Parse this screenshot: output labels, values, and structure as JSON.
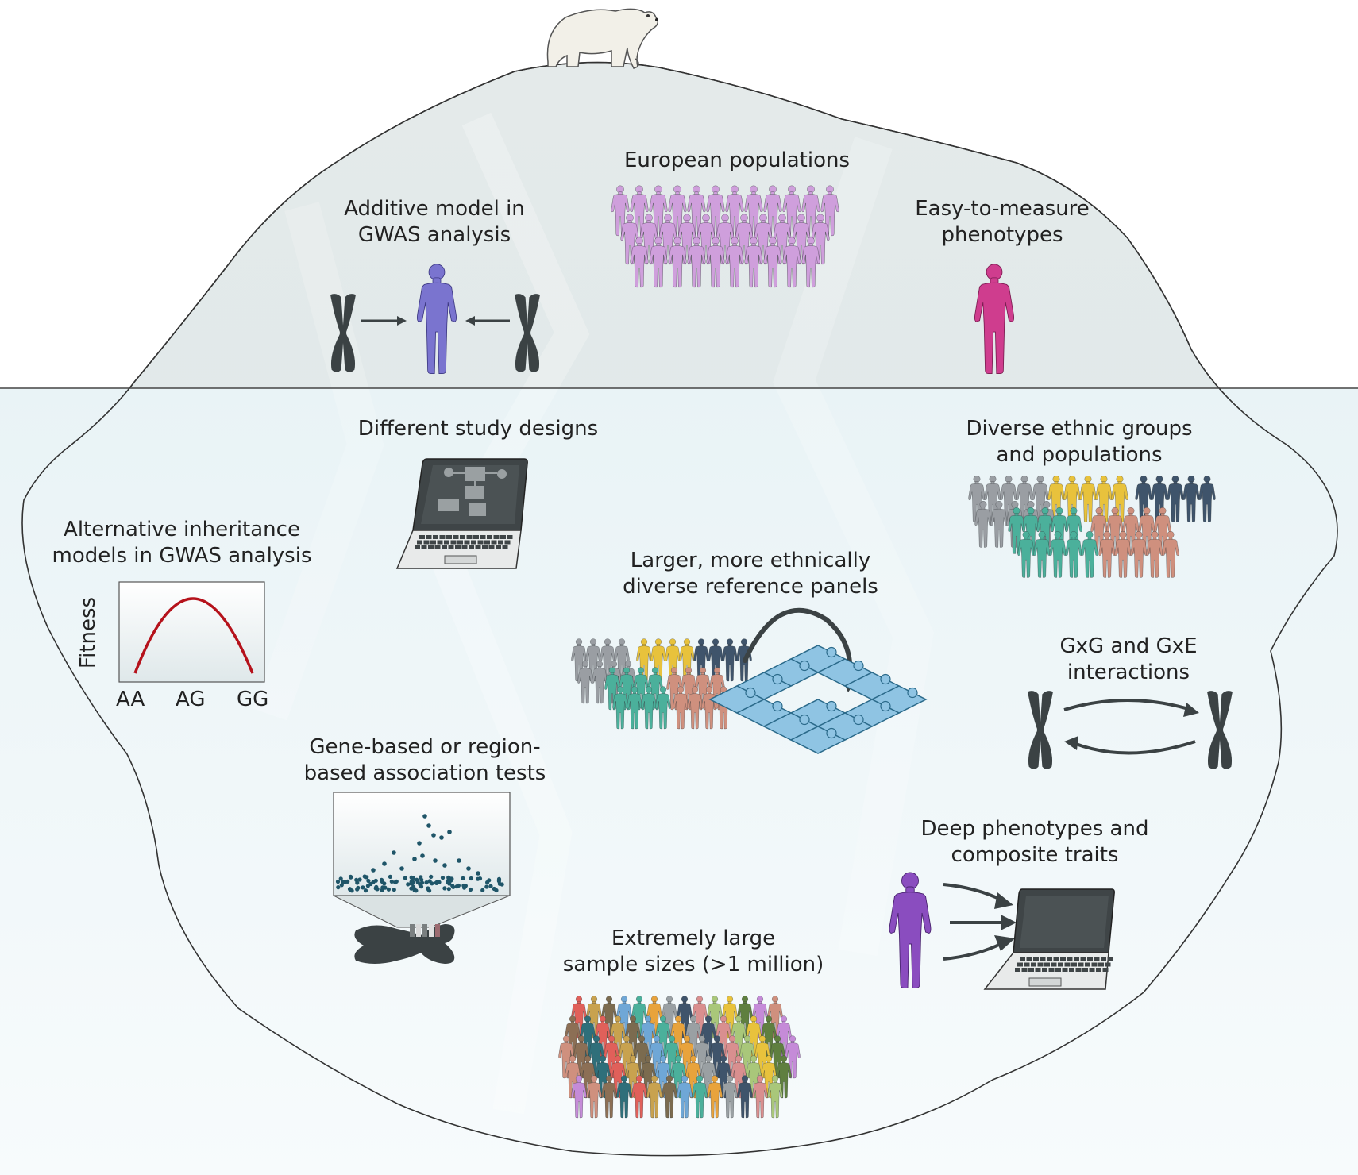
{
  "labels": {
    "european": "European populations",
    "additive_l1": "Additive model in",
    "additive_l2": "GWAS analysis",
    "easy_l1": "Easy-to-measure",
    "easy_l2": "phenotypes",
    "designs": "Different study designs",
    "diverse_l1": "Diverse ethnic groups",
    "diverse_l2": "and populations",
    "alt_l1": "Alternative inheritance",
    "alt_l2": "models in GWAS analysis",
    "panels_l1": "Larger, more ethnically",
    "panels_l2": "diverse reference panels",
    "gxg_l1": "GxG and GxE",
    "gxg_l2": "interactions",
    "genebased_l1": "Gene-based or region-",
    "genebased_l2": "based association tests",
    "deep_l1": "Deep phenotypes and",
    "deep_l2": "composite traits",
    "large_l1": "Extremely large",
    "large_l2": "sample sizes (>1 million)"
  },
  "fitness_chart": {
    "ylabel": "Fitness",
    "genotypes": [
      "AA",
      "AG",
      "GG"
    ]
  },
  "colors": {
    "european": "#cf9fdc",
    "additive_person": "#7a74cf",
    "easy_person": "#cf3d8e",
    "deep_person": "#8a4dbf",
    "grey": "#9a9ea3",
    "yellow": "#e8c23c",
    "navy": "#3f546b",
    "teal": "#4bb09b",
    "salmon": "#cf907e",
    "chromosome": "#3b4244",
    "fitness_curve": "#b5121b",
    "dots": "#1f5568"
  }
}
